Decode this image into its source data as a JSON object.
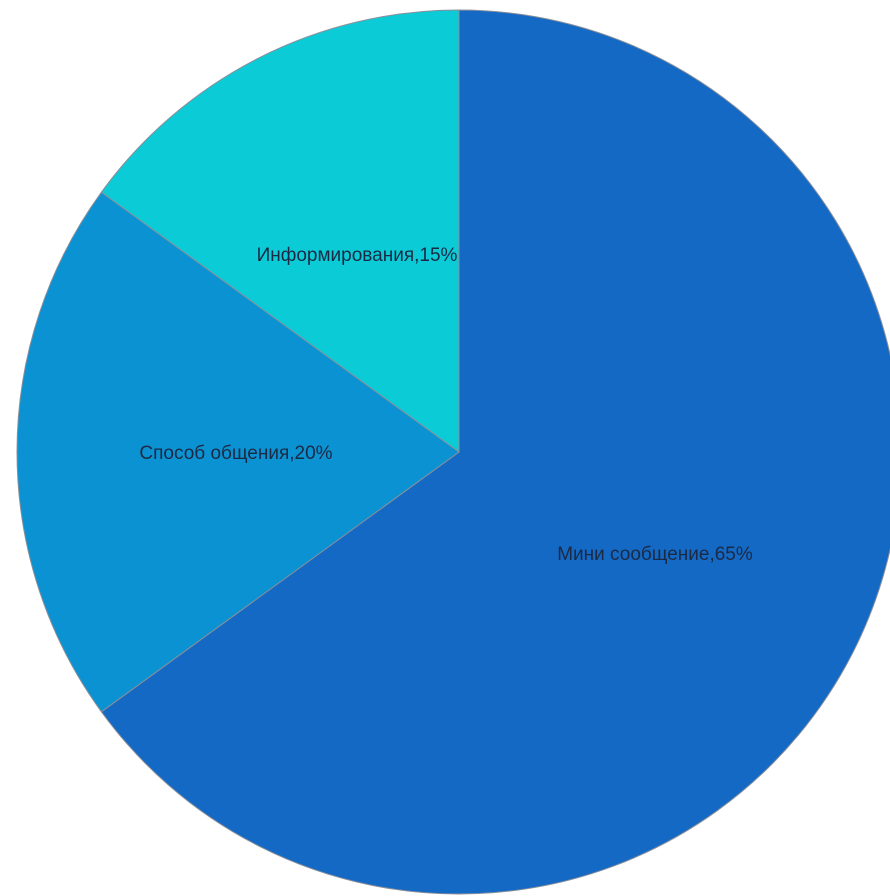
{
  "chart_data": {
    "type": "pie",
    "title": "",
    "legend": "none",
    "slices": [
      {
        "label": "Мини сообщение,65%",
        "name": "Мини сообщение",
        "value": 65,
        "color": "#1469c4"
      },
      {
        "label": "Способ общения,20%",
        "name": "Способ общения",
        "value": 20,
        "color": "#0b92d2"
      },
      {
        "label": "Информирования,15%",
        "name": "Информирования",
        "value": 15,
        "color": "#0bcbd7"
      }
    ]
  }
}
